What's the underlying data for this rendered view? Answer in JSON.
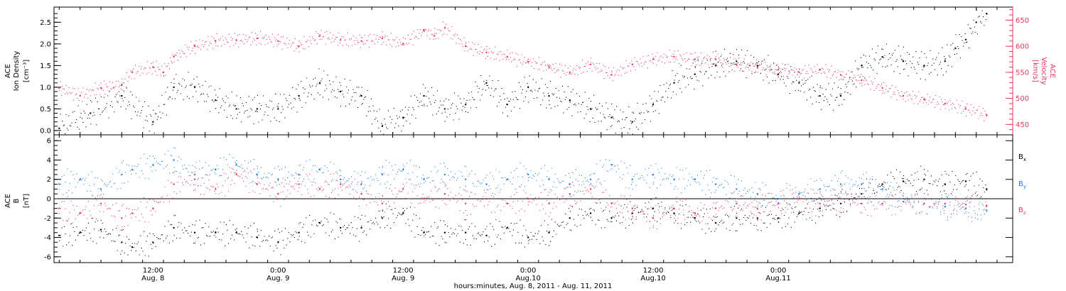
{
  "colors": {
    "black": "#000000",
    "pink": "#e8365f",
    "blue": "#1e7fe0"
  },
  "chart_data": [
    {
      "type": "scatter",
      "panel": "top",
      "ylabel_left": [
        "ACE",
        "Ion Density",
        "[cm⁻³]"
      ],
      "ylabel_right": [
        "ACE",
        "Velocity",
        "[km/s]"
      ],
      "ylim_left": [
        -0.1,
        2.85
      ],
      "ylim_right": [
        430,
        675
      ],
      "left_ticks": [
        "0.0",
        "0.5",
        "1.0",
        "1.5",
        "2.0",
        "2.5"
      ],
      "left_tick_values": [
        0.0,
        0.5,
        1.0,
        1.5,
        2.0,
        2.5
      ],
      "right_ticks": [
        "450",
        "500",
        "550",
        "600",
        "650"
      ],
      "right_tick_values": [
        450,
        500,
        550,
        600,
        650
      ],
      "x_unit": "hours since 2011-08-08 00:00",
      "xlim": [
        2.5,
        94.5
      ],
      "series": [
        {
          "axis": "left",
          "color": "black",
          "x": [
            3,
            6,
            9,
            12,
            14,
            16,
            18,
            20,
            22,
            24,
            26,
            28,
            30,
            32,
            34,
            36,
            38,
            40,
            42,
            44,
            46,
            48,
            50,
            52,
            54,
            56,
            58,
            60,
            62,
            64,
            66,
            68,
            70,
            72,
            74,
            76,
            78,
            80,
            82,
            84,
            86,
            88,
            89,
            90,
            91,
            92
          ],
          "y": [
            0.05,
            0.4,
            0.8,
            0.2,
            1.0,
            1.0,
            0.7,
            0.5,
            0.5,
            0.5,
            0.8,
            1.1,
            0.9,
            0.8,
            0.1,
            0.3,
            0.8,
            0.5,
            0.6,
            1.1,
            0.6,
            1.0,
            0.8,
            0.7,
            0.5,
            0.3,
            0.2,
            0.6,
            1.1,
            1.3,
            1.5,
            1.6,
            1.5,
            1.3,
            1.1,
            0.8,
            0.8,
            1.5,
            1.7,
            1.6,
            1.5,
            1.6,
            1.9,
            2.1,
            2.5,
            2.7
          ]
        },
        {
          "axis": "right",
          "color": "pink",
          "x": [
            3,
            5,
            7,
            9,
            10,
            12,
            13,
            14,
            16,
            18,
            20,
            22,
            24,
            26,
            28,
            30,
            32,
            34,
            36,
            38,
            39,
            40,
            42,
            44,
            46,
            48,
            50,
            52,
            54,
            56,
            58,
            60,
            62,
            64,
            66,
            68,
            70,
            72,
            74,
            76,
            78,
            80,
            82,
            84,
            86,
            88,
            90,
            92
          ],
          "y": [
            520,
            505,
            520,
            525,
            550,
            560,
            550,
            580,
            600,
            610,
            612,
            615,
            610,
            600,
            620,
            612,
            610,
            615,
            605,
            630,
            620,
            635,
            600,
            588,
            580,
            570,
            560,
            550,
            565,
            545,
            565,
            575,
            580,
            575,
            575,
            565,
            560,
            555,
            550,
            555,
            545,
            535,
            520,
            505,
            498,
            490,
            480,
            468
          ]
        }
      ]
    },
    {
      "type": "scatter",
      "panel": "bottom",
      "ylabel_left": [
        "ACE",
        "B",
        "[nT]"
      ],
      "ylim": [
        -6.6,
        6.6
      ],
      "ticks": [
        "-6",
        "-4",
        "-2",
        "0",
        "2",
        "4",
        "6"
      ],
      "tick_values": [
        -6,
        -4,
        -2,
        0,
        2,
        4,
        6
      ],
      "zero_line": true,
      "x_unit": "hours since 2011-08-08 00:00",
      "xlim": [
        2.5,
        94.5
      ],
      "legend": {
        "placement": "right",
        "labels": [
          "Bx",
          "By",
          "Bz"
        ]
      },
      "series": [
        {
          "name": "Bx",
          "color": "black",
          "x": [
            3,
            5,
            7,
            9,
            10,
            12,
            14,
            16,
            18,
            20,
            22,
            24,
            26,
            28,
            30,
            32,
            34,
            36,
            38,
            40,
            42,
            44,
            46,
            48,
            50,
            52,
            54,
            56,
            58,
            60,
            62,
            64,
            66,
            68,
            70,
            72,
            74,
            76,
            78,
            80,
            82,
            84,
            86,
            88,
            90,
            92
          ],
          "y": [
            -3.8,
            -3.5,
            -3.2,
            -4.5,
            -5.0,
            -4.5,
            -3.0,
            -3.5,
            -3.5,
            -3.5,
            -4.0,
            -4.5,
            -3.5,
            -2.5,
            -3.0,
            -3.0,
            -2.0,
            -1.5,
            -3.5,
            -3.5,
            -3.5,
            -3.8,
            -3.0,
            -4.0,
            -3.5,
            -2.0,
            -1.5,
            -2.0,
            -1.5,
            -1.0,
            -1.5,
            -2.0,
            -2.5,
            -2.0,
            -2.0,
            -2.0,
            -1.5,
            -1.0,
            -0.5,
            0.5,
            1.5,
            1.8,
            2.0,
            1.5,
            1.8,
            1.0
          ]
        },
        {
          "name": "By",
          "color": "blue",
          "x": [
            3,
            5,
            7,
            9,
            10,
            12,
            14,
            16,
            18,
            20,
            22,
            24,
            26,
            28,
            30,
            32,
            34,
            36,
            38,
            40,
            42,
            44,
            46,
            48,
            50,
            52,
            54,
            56,
            58,
            60,
            62,
            64,
            66,
            68,
            70,
            72,
            74,
            76,
            78,
            80,
            82,
            84,
            86,
            88,
            90,
            92
          ],
          "y": [
            1.5,
            2.0,
            1.0,
            2.5,
            3.0,
            3.5,
            4.0,
            2.5,
            3.0,
            3.5,
            2.5,
            2.0,
            2.5,
            3.0,
            2.0,
            1.5,
            2.5,
            3.0,
            2.0,
            2.5,
            2.0,
            1.5,
            2.0,
            2.5,
            2.0,
            1.5,
            2.0,
            3.5,
            2.0,
            2.5,
            2.0,
            2.0,
            1.5,
            1.0,
            0.5,
            0.0,
            0.5,
            1.0,
            1.5,
            1.5,
            1.0,
            0.0,
            -0.5,
            -0.8,
            -1.0,
            -1.2
          ]
        },
        {
          "name": "Bz",
          "color": "pink",
          "x": [
            3,
            5,
            7,
            9,
            10,
            12,
            14,
            16,
            18,
            20,
            22,
            24,
            26,
            28,
            30,
            32,
            34,
            36,
            38,
            40,
            42,
            44,
            46,
            48,
            50,
            52,
            54,
            56,
            58,
            60,
            62,
            64,
            66,
            68,
            70,
            72,
            74,
            76,
            78,
            80,
            82,
            84,
            86,
            88,
            90,
            92
          ],
          "y": [
            -1.0,
            -1.5,
            -0.5,
            -2.0,
            -1.5,
            -1.0,
            1.5,
            2.0,
            1.0,
            2.5,
            1.5,
            0.5,
            1.5,
            1.0,
            1.5,
            0.5,
            -0.5,
            1.0,
            0.0,
            0.5,
            -0.5,
            0.0,
            -0.5,
            0.0,
            -0.5,
            0.5,
            1.0,
            -0.5,
            -1.0,
            -2.0,
            -1.0,
            -1.5,
            -1.0,
            -0.5,
            -1.0,
            -0.5,
            0.0,
            -0.5,
            0.0,
            -0.5,
            -0.5,
            -0.3,
            -0.5,
            -0.5,
            -0.6,
            -0.7
          ]
        }
      ]
    }
  ],
  "x_axis": {
    "ticks": [
      {
        "hours": 12,
        "time": "12:00",
        "date": "Aug. 8"
      },
      {
        "hours": 24,
        "time": "0:00",
        "date": "Aug. 9"
      },
      {
        "hours": 36,
        "time": "12:00",
        "date": "Aug. 9"
      },
      {
        "hours": 48,
        "time": "0:00",
        "date": "Aug.10"
      },
      {
        "hours": 60,
        "time": "12:00",
        "date": "Aug.10"
      },
      {
        "hours": 72,
        "time": "0:00",
        "date": "Aug.11"
      }
    ],
    "label": "hours:minutes, Aug.  8, 2011 - Aug. 11, 2011"
  }
}
